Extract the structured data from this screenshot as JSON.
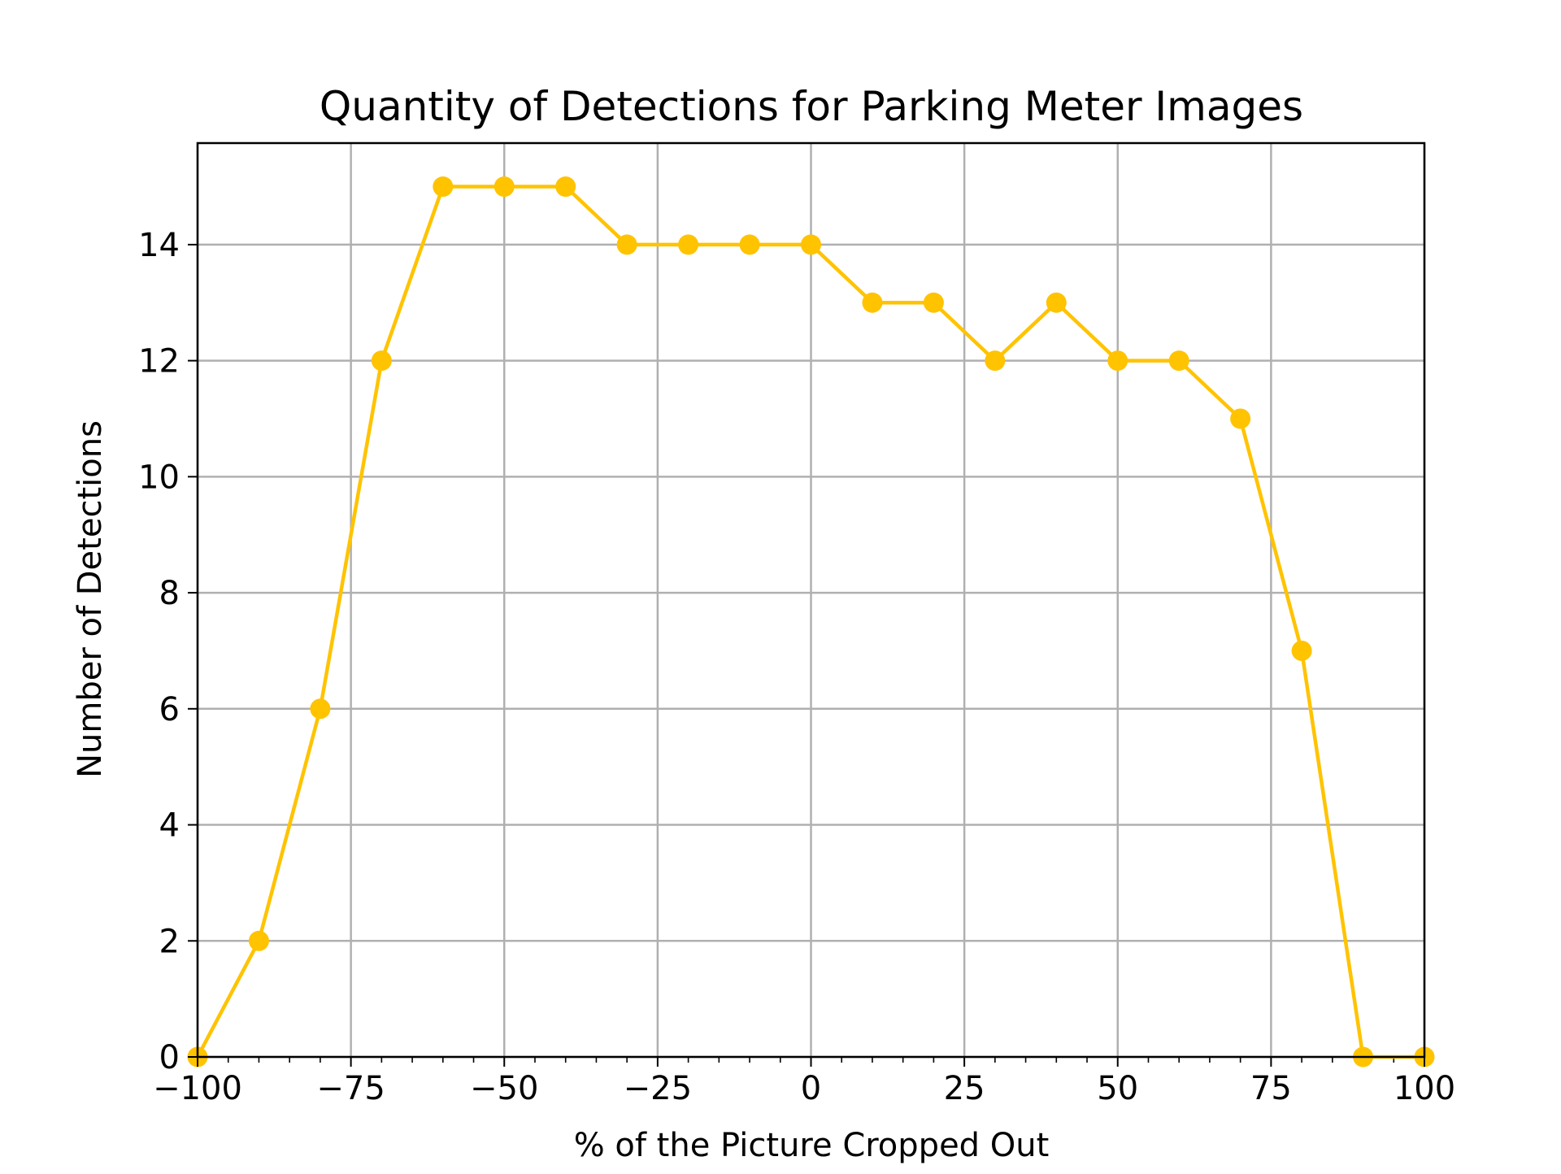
{
  "chart_data": {
    "type": "line",
    "title": "Quantity of Detections for Parking Meter Images",
    "xlabel": "% of the Picture Cropped Out",
    "ylabel": "Number of Detections",
    "xlim": [
      -100,
      100
    ],
    "ylim": [
      0,
      15.75
    ],
    "x_ticks": [
      -100,
      -75,
      -50,
      -25,
      0,
      25,
      50,
      75,
      100
    ],
    "x_tick_labels": [
      "−100",
      "−75",
      "−50",
      "−25",
      "0",
      "25",
      "50",
      "75",
      "100"
    ],
    "y_ticks": [
      0,
      2,
      4,
      6,
      8,
      10,
      12,
      14
    ],
    "y_tick_labels": [
      "0",
      "2",
      "4",
      "6",
      "8",
      "10",
      "12",
      "14"
    ],
    "grid": true,
    "series": [
      {
        "color": "#FFC300",
        "marker": "circle",
        "x": [
          -100,
          -90,
          -80,
          -70,
          -60,
          -50,
          -40,
          -30,
          -20,
          -10,
          0,
          10,
          20,
          30,
          40,
          50,
          60,
          70,
          80,
          90,
          100
        ],
        "y": [
          0,
          2,
          6,
          12,
          15,
          15,
          15,
          14,
          14,
          14,
          14,
          13,
          13,
          12,
          13,
          12,
          12,
          11,
          7,
          0,
          0
        ]
      }
    ]
  }
}
